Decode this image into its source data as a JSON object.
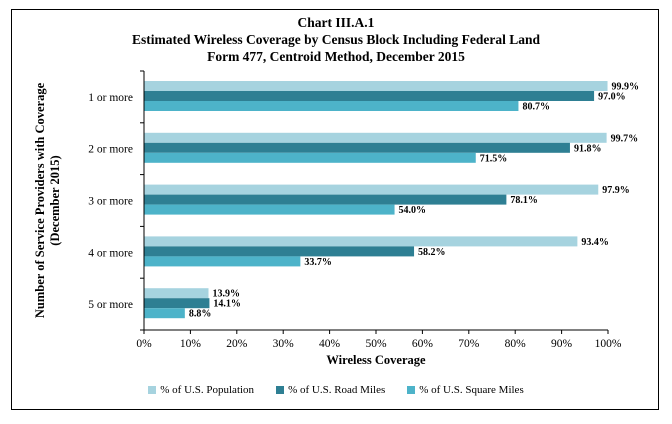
{
  "chart_data": {
    "type": "bar",
    "orientation": "horizontal",
    "title": "Chart III.A.1",
    "subtitle": "Estimated Wireless Coverage by Census Block Including Federal Land",
    "subtitle2": "Form 477, Centroid Method, December 2015",
    "xlabel": "Wireless Coverage",
    "ylabel": "Number of Service Providers with Coverage",
    "ylabel2": "(December 2015)",
    "xlim": [
      0,
      100
    ],
    "xticks": [
      "0%",
      "10%",
      "20%",
      "30%",
      "40%",
      "50%",
      "60%",
      "70%",
      "80%",
      "90%",
      "100%"
    ],
    "categories": [
      "1 or more",
      "2 or more",
      "3 or more",
      "4 or more",
      "5 or more"
    ],
    "series": [
      {
        "name": "% of U.S. Population",
        "color": "#a6d3df",
        "values": [
          99.9,
          99.7,
          97.9,
          93.4,
          13.9
        ],
        "labels": [
          "99.9%",
          "99.7%",
          "97.9%",
          "93.4%",
          "13.9%"
        ]
      },
      {
        "name": "% of U.S. Road Miles",
        "color": "#2e7f93",
        "values": [
          97.0,
          91.8,
          78.1,
          58.2,
          14.1
        ],
        "labels": [
          "97.0%",
          "91.8%",
          "78.1%",
          "58.2%",
          "14.1%"
        ]
      },
      {
        "name": "% of U.S. Square Miles",
        "color": "#4db3c9",
        "values": [
          80.7,
          71.5,
          54.0,
          33.7,
          8.8
        ],
        "labels": [
          "80.7%",
          "71.5%",
          "54.0%",
          "33.7%",
          "8.8%"
        ]
      }
    ],
    "grid": false,
    "legend_position": "bottom"
  }
}
